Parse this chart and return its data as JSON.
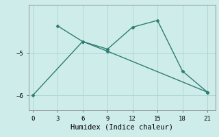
{
  "xlabel": "Humidex (Indice chaleur)",
  "background_color": "#ceecea",
  "grid_color": "#aed8d5",
  "line_color": "#2e7d72",
  "line1_x": [
    3,
    6,
    9,
    12,
    15,
    18,
    21
  ],
  "line1_y": [
    -4.35,
    -4.72,
    -4.9,
    -4.38,
    -4.22,
    -5.42,
    -5.92
  ],
  "line2_x": [
    0,
    6,
    9,
    21
  ],
  "line2_y": [
    -6.0,
    -4.72,
    -4.95,
    -5.92
  ],
  "xlim": [
    -0.5,
    22
  ],
  "ylim": [
    -6.35,
    -3.85
  ],
  "xticks": [
    0,
    3,
    6,
    9,
    12,
    15,
    18,
    21
  ],
  "yticks": [
    -6,
    -5
  ],
  "marker": "D",
  "markersize": 2.5,
  "linewidth": 1.0,
  "tick_fontsize": 6.5,
  "label_fontsize": 7.5
}
